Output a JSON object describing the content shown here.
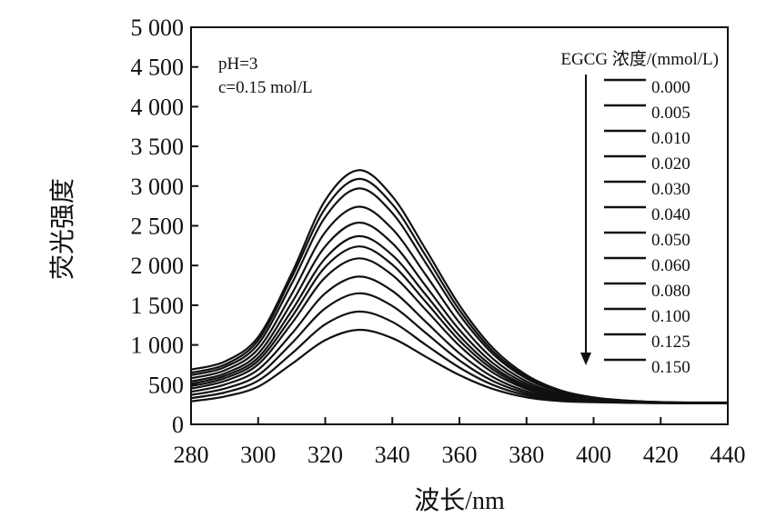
{
  "chart_data": {
    "type": "line",
    "xlabel": "波长/nm",
    "ylabel": "荧光强度",
    "xlim": [
      280,
      440
    ],
    "ylim": [
      0,
      5000
    ],
    "x_ticks": [
      "280",
      "300",
      "320",
      "340",
      "360",
      "380",
      "400",
      "420",
      "440"
    ],
    "y_ticks": [
      "0",
      "500",
      "1 000",
      "1 500",
      "2 000",
      "2 500",
      "3 000",
      "3 500",
      "4 000",
      "4 500",
      "5 000"
    ],
    "annotations": [
      "pH=3",
      "c=0.15 mol/L"
    ],
    "legend_title": "EGCG 浓度/(mmol/L)",
    "legend_placement": "top-right",
    "arrow_direction": "down",
    "peak_x": 330,
    "x": [
      280,
      290,
      300,
      310,
      320,
      330,
      340,
      350,
      360,
      370,
      380,
      390,
      400,
      410,
      420,
      430,
      440
    ],
    "series": [
      {
        "name": "0.000",
        "values": [
          690,
          790,
          1100,
          1900,
          2820,
          3200,
          2870,
          2200,
          1500,
          960,
          620,
          430,
          340,
          300,
          280,
          275,
          275
        ]
      },
      {
        "name": "0.005",
        "values": [
          650,
          750,
          1060,
          1850,
          2720,
          3090,
          2770,
          2120,
          1440,
          920,
          595,
          415,
          335,
          298,
          279,
          274,
          274
        ]
      },
      {
        "name": "0.010",
        "values": [
          620,
          720,
          1010,
          1770,
          2610,
          2970,
          2660,
          2030,
          1380,
          885,
          575,
          405,
          330,
          296,
          278,
          273,
          273
        ]
      },
      {
        "name": "0.020",
        "values": [
          580,
          680,
          950,
          1640,
          2420,
          2740,
          2460,
          1880,
          1280,
          825,
          540,
          385,
          322,
          292,
          276,
          272,
          272
        ]
      },
      {
        "name": "0.030",
        "values": [
          540,
          640,
          890,
          1530,
          2240,
          2540,
          2280,
          1740,
          1190,
          770,
          510,
          370,
          315,
          289,
          275,
          271,
          271
        ]
      },
      {
        "name": "0.040",
        "values": [
          510,
          610,
          840,
          1430,
          2090,
          2370,
          2130,
          1630,
          1115,
          725,
          485,
          357,
          309,
          286,
          274,
          270,
          270
        ]
      },
      {
        "name": "0.050",
        "values": [
          480,
          580,
          800,
          1350,
          1980,
          2240,
          2010,
          1540,
          1055,
          690,
          465,
          347,
          304,
          284,
          273,
          269,
          269
        ]
      },
      {
        "name": "0.060",
        "values": [
          450,
          545,
          755,
          1270,
          1850,
          2090,
          1880,
          1440,
          990,
          650,
          445,
          337,
          300,
          282,
          272,
          268,
          268
        ]
      },
      {
        "name": "0.080",
        "values": [
          410,
          500,
          690,
          1140,
          1650,
          1860,
          1680,
          1290,
          895,
          595,
          415,
          323,
          294,
          279,
          271,
          267,
          267
        ]
      },
      {
        "name": "0.100",
        "values": [
          370,
          450,
          620,
          1020,
          1460,
          1650,
          1490,
          1150,
          805,
          545,
          390,
          312,
          288,
          276,
          270,
          266,
          266
        ]
      },
      {
        "name": "0.125",
        "values": [
          330,
          400,
          550,
          890,
          1260,
          1420,
          1290,
          1000,
          715,
          495,
          365,
          302,
          283,
          273,
          268,
          265,
          265
        ]
      },
      {
        "name": "0.150",
        "values": [
          290,
          350,
          475,
          760,
          1060,
          1190,
          1085,
          850,
          620,
          445,
          340,
          293,
          278,
          271,
          267,
          264,
          264
        ]
      }
    ]
  }
}
